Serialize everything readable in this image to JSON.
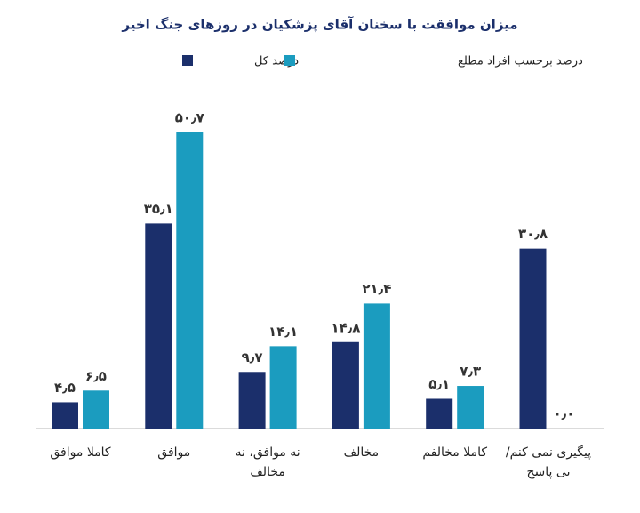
{
  "chart_data": {
    "type": "bar",
    "title": "میزان موافقت با سخنان آقای پزشکیان در روزهای جنگ اخیر",
    "categories": [
      "کاملا موافق",
      "موافق",
      "نه موافق، نه مخالف",
      "مخالف",
      "کاملا مخالفم",
      "پیگیری نمی کنم/بی پاسخ"
    ],
    "series": [
      {
        "name": "درصد کل",
        "color": "#1b2f6b",
        "values": [
          4.5,
          35.1,
          9.7,
          14.8,
          5.1,
          30.8
        ],
        "value_labels": [
          "۴٫۵",
          "۳۵٫۱",
          "۹٫۷",
          "۱۴٫۸",
          "۵٫۱",
          "۳۰٫۸"
        ]
      },
      {
        "name": "درصد برحسب افراد مطلع",
        "color": "#1b9cbf",
        "values": [
          6.5,
          50.7,
          14.1,
          21.4,
          7.3,
          0
        ],
        "value_labels": [
          "۶٫۵",
          "۵۰٫۷",
          "۱۴٫۱",
          "۲۱٫۴",
          "۷٫۳",
          "۰٫۰"
        ]
      }
    ]
  }
}
